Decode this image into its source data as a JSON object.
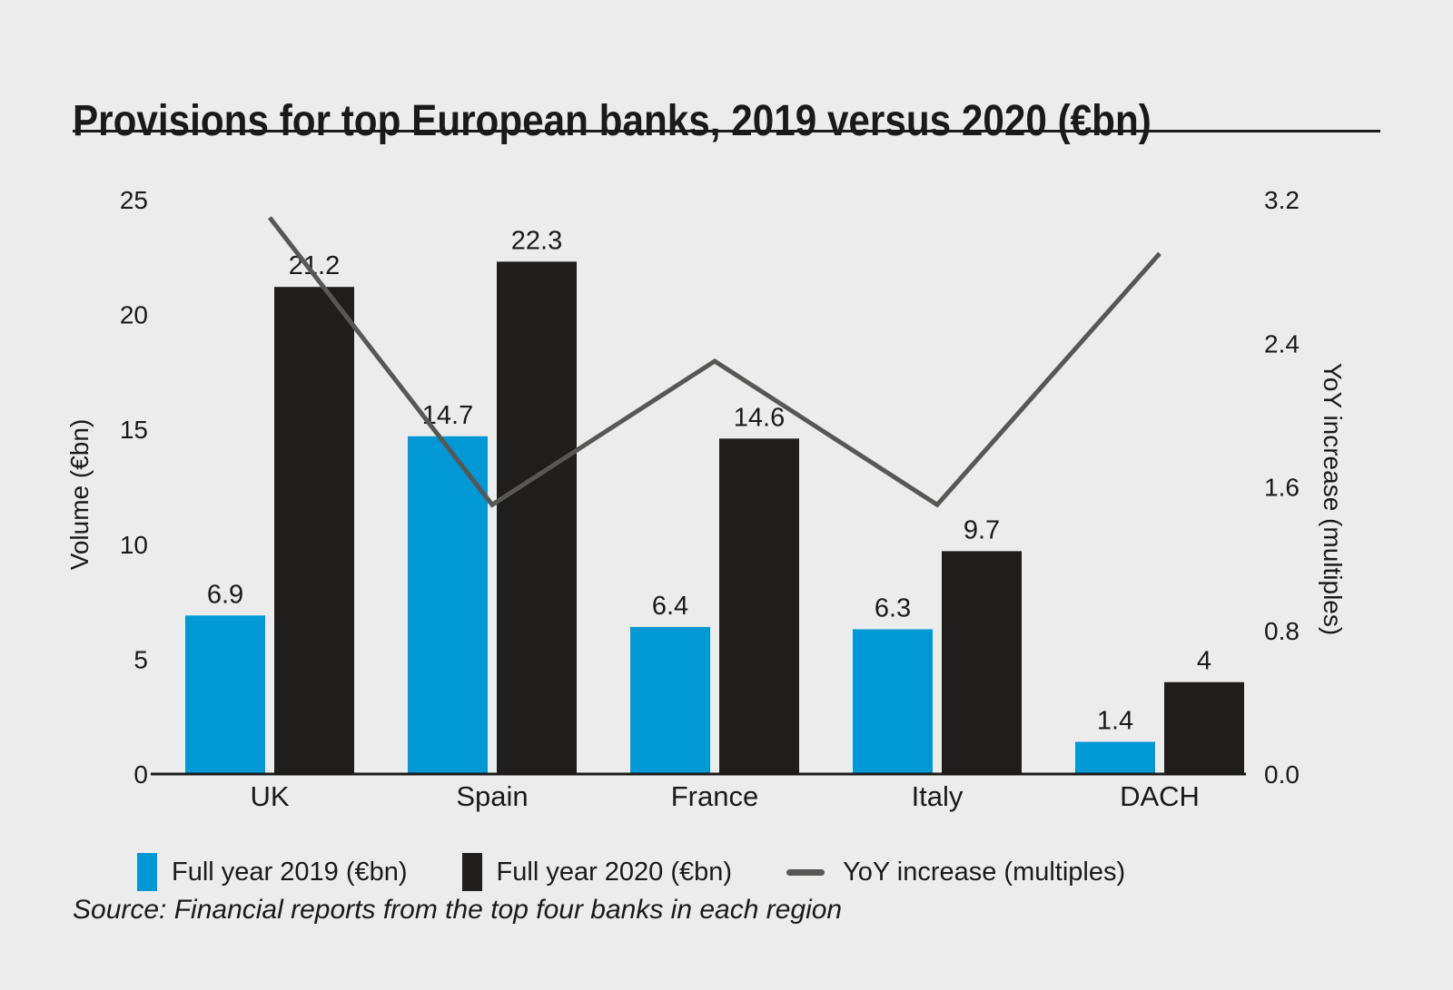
{
  "title": "Provisions for top European banks, 2019 versus 2020 (€bn)",
  "source": "Source: Financial reports from the top four banks in each region",
  "legend": [
    {
      "label": "Full year 2019 (€bn)",
      "marker": "square",
      "color": "#0099d6"
    },
    {
      "label": "Full year 2020 (€bn)",
      "marker": "square",
      "color": "#1f1e1c"
    },
    {
      "label": "YoY increase (multiples)",
      "marker": "line",
      "color": "#575756"
    }
  ],
  "colors": {
    "background": "#ececec",
    "text": "#1a1a1a",
    "bar_2019": "#0099d6",
    "bar_2020": "#1f1e1c",
    "yoy_line": "#575756",
    "axis": "#1a1a1a"
  },
  "chart_data": {
    "type": "bar",
    "subtype": "grouped bars with secondary-axis line",
    "title": "Provisions for top European banks, 2019 versus 2020 (€bn)",
    "categories": [
      "UK",
      "Spain",
      "France",
      "Italy",
      "DACH"
    ],
    "series": [
      {
        "name": "Full year 2019 (€bn)",
        "type": "bar",
        "axis": "left",
        "color": "#0099d6",
        "values": [
          6.9,
          14.7,
          6.4,
          6.3,
          1.4
        ],
        "labels": [
          "6.9",
          "14.7",
          "6.4",
          "6.3",
          "1.4"
        ]
      },
      {
        "name": "Full year 2020 (€bn)",
        "type": "bar",
        "axis": "left",
        "color": "#1f1e1c",
        "values": [
          21.2,
          22.3,
          14.6,
          9.7,
          4
        ],
        "labels": [
          "21.2",
          "22.3",
          "14.6",
          "9.7",
          "4"
        ]
      },
      {
        "name": "YoY increase (multiples)",
        "type": "line",
        "axis": "right",
        "color": "#575756",
        "values": [
          3.1,
          1.5,
          2.3,
          1.5,
          2.9
        ]
      }
    ],
    "left_axis": {
      "title": "Volume (€bn)",
      "ticks": [
        0,
        5,
        10,
        15,
        20,
        25
      ],
      "range": [
        0,
        25
      ]
    },
    "right_axis": {
      "title": "YoY increase (multiples)",
      "ticks": [
        "0.0",
        "0.8",
        "1.6",
        "2.4",
        "3.2"
      ],
      "range": [
        0,
        3.2
      ]
    },
    "grid": false,
    "legend_position": "bottom",
    "xlabel": "",
    "ylabel": "Volume (€bn)"
  }
}
